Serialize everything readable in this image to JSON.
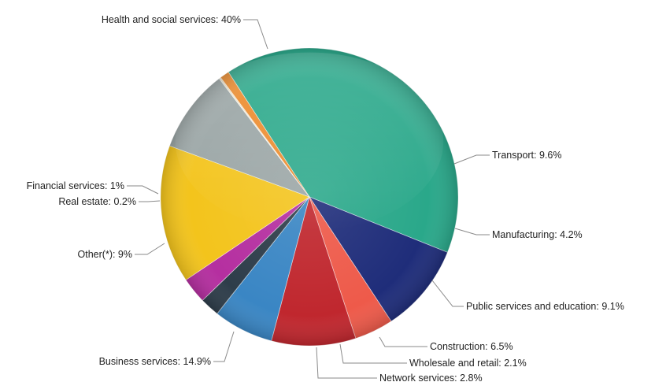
{
  "chart_data": {
    "type": "pie",
    "title": "",
    "slices": [
      {
        "label": "Health and social services: 40%",
        "name": "Health and social services",
        "value": 40.0,
        "color": "#2aa88a"
      },
      {
        "label": "Transport: 9.6%",
        "name": "Transport",
        "value": 9.6,
        "color": "#1f2d7a"
      },
      {
        "label": "Manufacturing: 4.2%",
        "name": "Manufacturing",
        "value": 4.2,
        "color": "#ee5a4a"
      },
      {
        "label": "Public services and education: 9.1%",
        "name": "Public services and education",
        "value": 9.1,
        "color": "#c0272e"
      },
      {
        "label": "Construction: 6.5%",
        "name": "Construction",
        "value": 6.5,
        "color": "#3a86c4"
      },
      {
        "label": "Wholesale and retail: 2.1%",
        "name": "Wholesale and retail",
        "value": 2.1,
        "color": "#2e3d4a"
      },
      {
        "label": "Network services: 2.8%",
        "name": "Network services",
        "value": 2.8,
        "color": "#b52fa0"
      },
      {
        "label": "Business services: 14.9%",
        "name": "Business services",
        "value": 14.9,
        "color": "#f3c41c"
      },
      {
        "label": "Other(*): 9%",
        "name": "Other(*)",
        "value": 9.0,
        "color": "#9aa5a5"
      },
      {
        "label": "Real estate: 0.2%",
        "name": "Real estate",
        "value": 0.2,
        "color": "#ede4cc"
      },
      {
        "label": "Financial services: 1%",
        "name": "Financial services",
        "value": 1.0,
        "color": "#ec8a2a"
      }
    ]
  }
}
